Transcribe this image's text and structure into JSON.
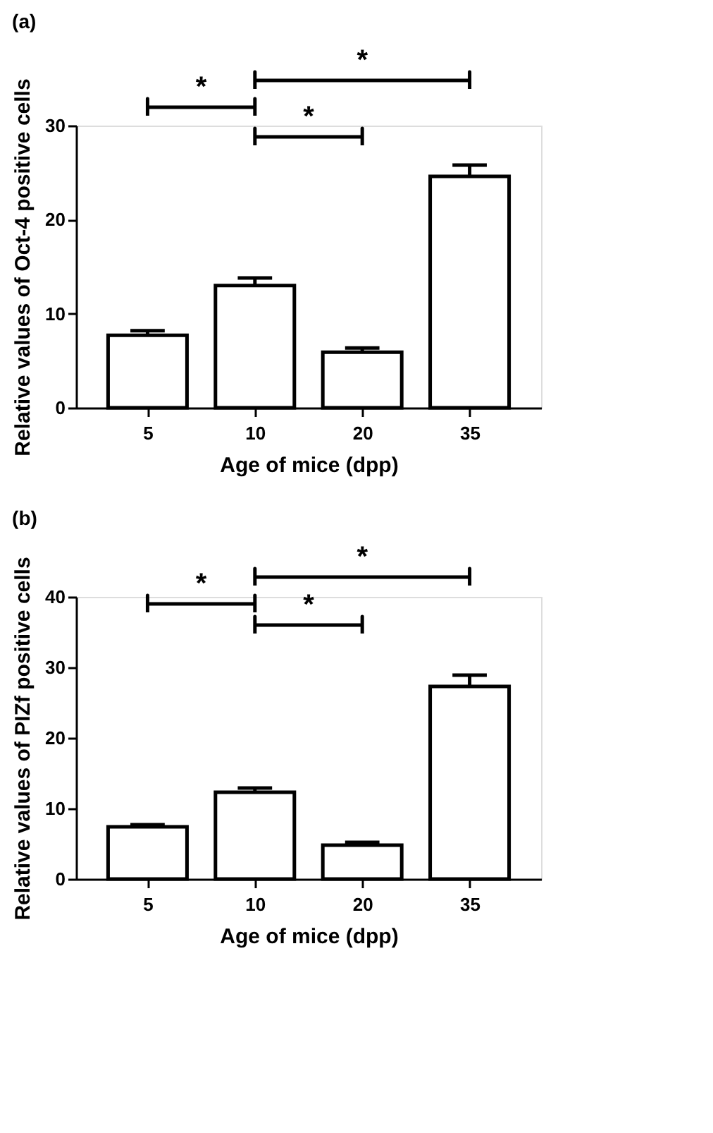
{
  "chart_data": [
    {
      "type": "bar",
      "title": "(a)",
      "xlabel": "Age of mice (dpp)",
      "ylabel": "Relative values of Oct-4 positive cells",
      "categories": [
        "5",
        "10",
        "20",
        "35"
      ],
      "values": [
        7.7,
        13.0,
        5.9,
        24.6
      ],
      "color": "#ffffff",
      "errors": [
        [
          7.7,
          8.2
        ],
        [
          13.0,
          13.8
        ],
        [
          5.9,
          6.35
        ],
        [
          24.6,
          25.8
        ]
      ],
      "ylim": [
        0,
        30
      ],
      "yticks": [
        0,
        10,
        20,
        30
      ],
      "grid": false,
      "annotations": [
        "*",
        "*",
        "*"
      ]
    },
    {
      "type": "bar",
      "title": "(b)",
      "xlabel": "Age of mice (dpp)",
      "ylabel": "Relative values of PIZf positive cells",
      "categories": [
        "5",
        "10",
        "20",
        "35"
      ],
      "values": [
        7.4,
        12.3,
        4.8,
        27.3
      ],
      "color": "#ffffff",
      "errors": [
        [
          7.4,
          7.7
        ],
        [
          12.3,
          12.9
        ],
        [
          4.8,
          5.2
        ],
        [
          27.3,
          28.9
        ]
      ],
      "ylim": [
        0,
        40
      ],
      "yticks": [
        0,
        10,
        20,
        30,
        40
      ],
      "grid": false,
      "annotations": [
        "*",
        "*",
        "*"
      ]
    }
  ]
}
